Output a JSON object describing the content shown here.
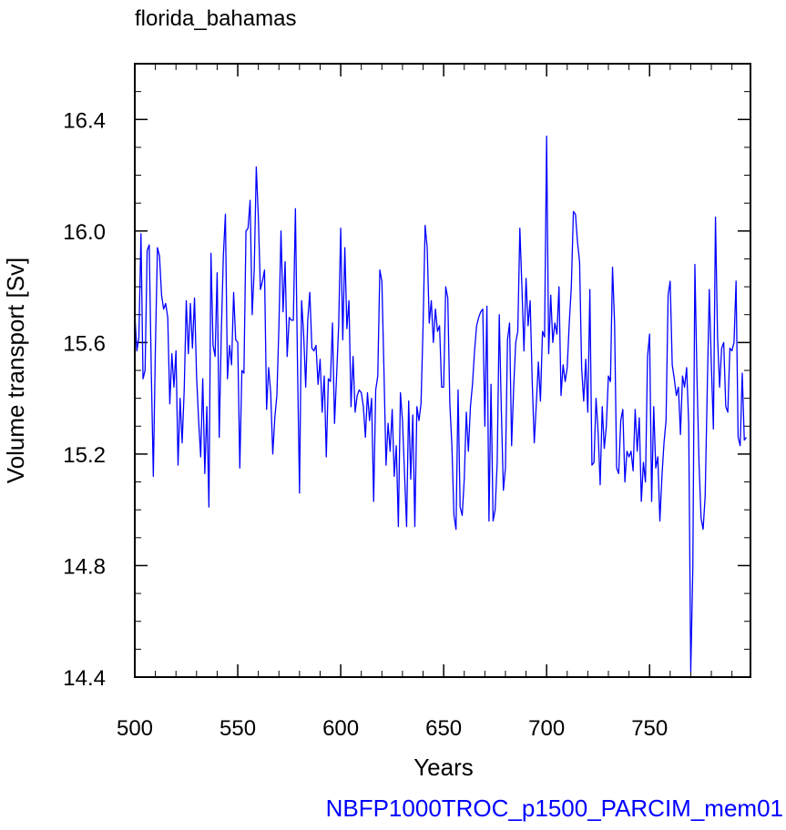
{
  "chart_data": {
    "type": "line",
    "title": "florida_bahamas",
    "xlabel": "Years",
    "ylabel": "Volume transport [Sv]",
    "footer": "NBFP1000TROC_p1500_PARCIM_mem01",
    "xlim": [
      500,
      799
    ],
    "ylim": [
      14.4,
      16.6
    ],
    "x_ticks": [
      500,
      550,
      600,
      650,
      700,
      750
    ],
    "x_tick_labels": [
      "500",
      "550",
      "600",
      "650",
      "700",
      "750"
    ],
    "y_ticks": [
      14.4,
      14.8,
      15.2,
      15.6,
      16.0,
      16.4
    ],
    "y_tick_labels": [
      "14.4",
      "14.8",
      "15.2",
      "15.6",
      "16.0",
      "16.4"
    ],
    "grid": false,
    "series": [
      {
        "color": "#0000ff",
        "x_start": 500,
        "x_step": 1,
        "values": [
          15.7,
          15.57,
          15.62,
          15.99,
          15.47,
          15.5,
          15.93,
          15.95,
          15.5,
          15.12,
          15.58,
          15.94,
          15.91,
          15.77,
          15.72,
          15.74,
          15.69,
          15.38,
          15.56,
          15.44,
          15.57,
          15.16,
          15.4,
          15.24,
          15.43,
          15.75,
          15.56,
          15.74,
          15.58,
          15.76,
          15.48,
          15.32,
          15.19,
          15.47,
          15.13,
          15.37,
          15.01,
          15.92,
          15.59,
          15.55,
          15.85,
          15.26,
          15.63,
          15.91,
          16.06,
          15.47,
          15.59,
          15.52,
          15.78,
          15.61,
          15.6,
          15.15,
          15.5,
          15.49,
          16.0,
          16.01,
          16.11,
          15.7,
          15.86,
          16.23,
          16.05,
          15.79,
          15.82,
          15.86,
          15.36,
          15.51,
          15.42,
          15.2,
          15.33,
          15.41,
          15.66,
          16.0,
          15.71,
          15.89,
          15.55,
          15.69,
          15.68,
          15.68,
          16.08,
          15.53,
          15.06,
          15.75,
          15.63,
          15.44,
          15.68,
          15.78,
          15.58,
          15.57,
          15.59,
          15.45,
          15.54,
          15.35,
          15.48,
          15.19,
          15.47,
          15.46,
          15.67,
          15.31,
          15.48,
          15.66,
          16.01,
          15.61,
          15.94,
          15.65,
          15.75,
          15.37,
          15.55,
          15.35,
          15.41,
          15.43,
          15.42,
          15.37,
          15.26,
          15.42,
          15.32,
          15.4,
          15.03,
          15.43,
          15.48,
          15.86,
          15.82,
          15.5,
          15.16,
          15.31,
          15.21,
          15.36,
          15.12,
          15.23,
          14.94,
          15.42,
          15.32,
          15.13,
          14.94,
          15.39,
          15.11,
          15.34,
          14.94,
          15.37,
          15.32,
          15.38,
          15.66,
          16.02,
          15.94,
          15.67,
          15.75,
          15.6,
          15.72,
          15.64,
          15.66,
          15.44,
          15.44,
          15.8,
          15.76,
          15.38,
          15.23,
          14.98,
          14.93,
          15.43,
          15.01,
          14.98,
          15.11,
          15.35,
          15.21,
          15.37,
          15.45,
          15.57,
          15.66,
          15.69,
          15.71,
          15.72,
          15.3,
          15.73,
          14.96,
          15.45,
          14.96,
          15.0,
          15.17,
          15.7,
          15.36,
          15.07,
          15.15,
          15.61,
          15.67,
          15.23,
          15.44,
          15.6,
          15.64,
          16.01,
          15.8,
          15.57,
          15.83,
          15.66,
          15.75,
          15.46,
          15.24,
          15.38,
          15.53,
          15.39,
          15.64,
          15.62,
          16.34,
          15.56,
          15.77,
          15.6,
          15.67,
          15.63,
          15.8,
          15.41,
          15.52,
          15.46,
          15.51,
          15.67,
          15.8,
          16.07,
          16.06,
          15.96,
          15.89,
          15.51,
          15.39,
          15.54,
          15.35,
          15.79,
          15.16,
          15.17,
          15.4,
          15.28,
          15.09,
          15.37,
          15.22,
          15.3,
          15.48,
          15.46,
          15.87,
          15.67,
          15.15,
          15.13,
          15.32,
          15.36,
          15.1,
          15.21,
          15.19,
          15.21,
          15.14,
          15.36,
          15.21,
          15.33,
          15.03,
          15.17,
          15.1,
          15.55,
          15.63,
          15.03,
          15.37,
          15.15,
          15.19,
          14.96,
          15.12,
          15.24,
          15.32,
          15.77,
          15.82,
          15.52,
          15.47,
          15.41,
          15.44,
          15.27,
          15.48,
          15.44,
          15.51,
          15.31,
          14.42,
          14.79,
          15.88,
          15.48,
          15.17,
          14.97,
          14.93,
          15.05,
          15.43,
          15.79,
          15.52,
          15.29,
          16.05,
          15.62,
          15.44,
          15.58,
          15.6,
          15.37,
          15.35,
          15.58,
          15.57,
          15.6,
          15.82,
          15.26,
          15.23,
          15.49,
          15.25,
          15.26
        ]
      }
    ]
  }
}
